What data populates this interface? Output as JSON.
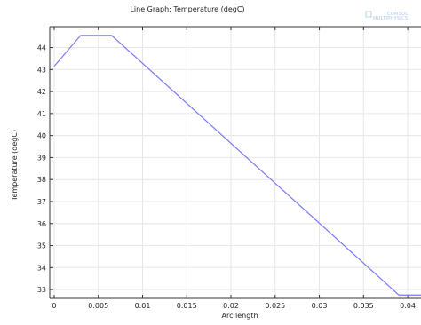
{
  "chart_data": {
    "type": "line",
    "title": "Line Graph: Temperature (degC)",
    "xlabel": "Arc length",
    "ylabel": "Temperature (degC)",
    "xlim": [
      -0.0005,
      0.0415
    ],
    "ylim": [
      32.6,
      44.95
    ],
    "xticks": [
      0,
      0.005,
      0.01,
      0.015,
      0.02,
      0.025,
      0.03,
      0.035,
      0.04
    ],
    "xtick_labels": [
      "0",
      "0.005",
      "0.01",
      "0.015",
      "0.02",
      "0.025",
      "0.03",
      "0.035",
      "0.04"
    ],
    "yticks": [
      33,
      34,
      35,
      36,
      37,
      38,
      39,
      40,
      41,
      42,
      43,
      44
    ],
    "ytick_labels": [
      "33",
      "34",
      "35",
      "36",
      "37",
      "38",
      "39",
      "40",
      "41",
      "42",
      "43",
      "44"
    ],
    "grid": true,
    "line_color": "#7a7af0",
    "series": [
      {
        "x": [
          0,
          0.003,
          0.0065,
          0.039,
          0.0415
        ],
        "y": [
          43.15,
          44.55,
          44.55,
          32.75,
          32.75
        ]
      }
    ]
  },
  "logo": {
    "line1": "COMSOL",
    "line2": "MULTIPHYSICS"
  }
}
